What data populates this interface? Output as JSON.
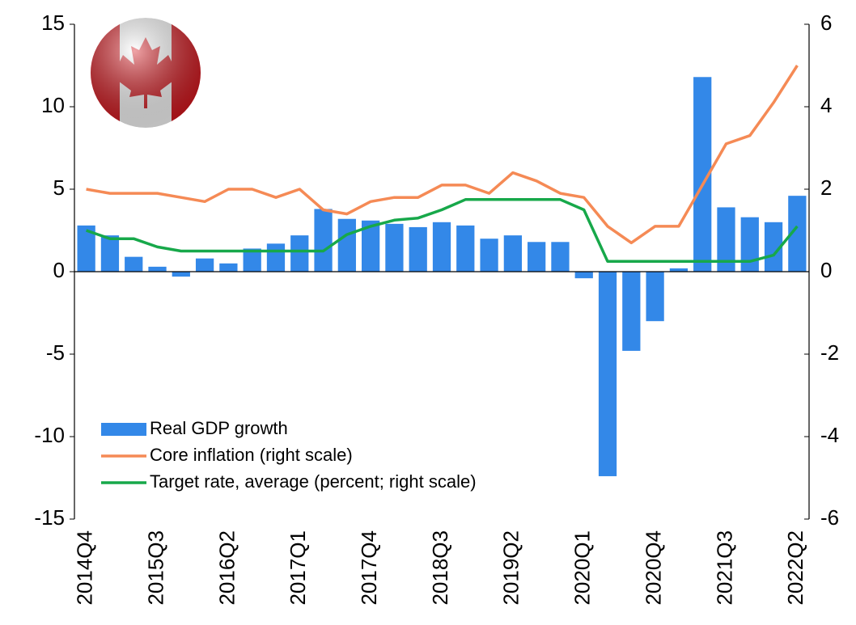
{
  "chart_data": {
    "type": "bar-line",
    "categories": [
      "2014Q4",
      null,
      null,
      "2015Q3",
      null,
      null,
      "2016Q2",
      null,
      null,
      "2017Q1",
      null,
      null,
      "2017Q4",
      null,
      null,
      "2018Q3",
      null,
      null,
      "2019Q2",
      null,
      null,
      "2020Q1",
      null,
      null,
      "2020Q4",
      null,
      null,
      "2021Q3",
      null,
      null,
      "2022Q2"
    ],
    "series": [
      {
        "name": "Real GDP growth",
        "type": "bar",
        "color": "#3388e8",
        "values": [
          2.8,
          2.2,
          0.9,
          0.3,
          -0.3,
          0.8,
          0.5,
          1.4,
          1.7,
          2.2,
          3.8,
          3.2,
          3.1,
          2.9,
          2.7,
          3.0,
          2.8,
          2.0,
          2.2,
          1.8,
          1.8,
          -0.4,
          -12.4,
          -4.8,
          -3.0,
          0.2,
          11.8,
          3.9,
          3.3,
          3.0,
          4.6
        ]
      },
      {
        "name": "Core inflation (right scale)",
        "type": "line",
        "axis": "y2",
        "color": "#f58a55",
        "values": [
          2.0,
          1.9,
          1.9,
          1.9,
          1.8,
          1.7,
          2.0,
          2.0,
          1.8,
          2.0,
          1.5,
          1.4,
          1.7,
          1.8,
          1.8,
          2.1,
          2.1,
          1.9,
          2.4,
          2.2,
          1.9,
          1.8,
          1.1,
          0.7,
          1.1,
          1.1,
          2.1,
          3.1,
          3.3,
          4.1,
          5.0
        ]
      },
      {
        "name": "Target rate, average (percent; right scale)",
        "type": "line",
        "axis": "y2",
        "color": "#17a84a",
        "values": [
          1.0,
          0.8,
          0.8,
          0.6,
          0.5,
          0.5,
          0.5,
          0.5,
          0.5,
          0.5,
          0.5,
          0.9,
          1.1,
          1.25,
          1.3,
          1.5,
          1.75,
          1.75,
          1.75,
          1.75,
          1.75,
          1.5,
          0.25,
          0.25,
          0.25,
          0.25,
          0.25,
          0.25,
          0.25,
          0.4,
          1.1
        ]
      }
    ],
    "ylim": [
      -15,
      15
    ],
    "yticks": [
      -15,
      -10,
      -5,
      0,
      5,
      10,
      15
    ],
    "y2lim": [
      -6,
      6
    ],
    "y2ticks": [
      -6,
      -4,
      -2,
      0,
      2,
      4,
      6
    ]
  }
}
